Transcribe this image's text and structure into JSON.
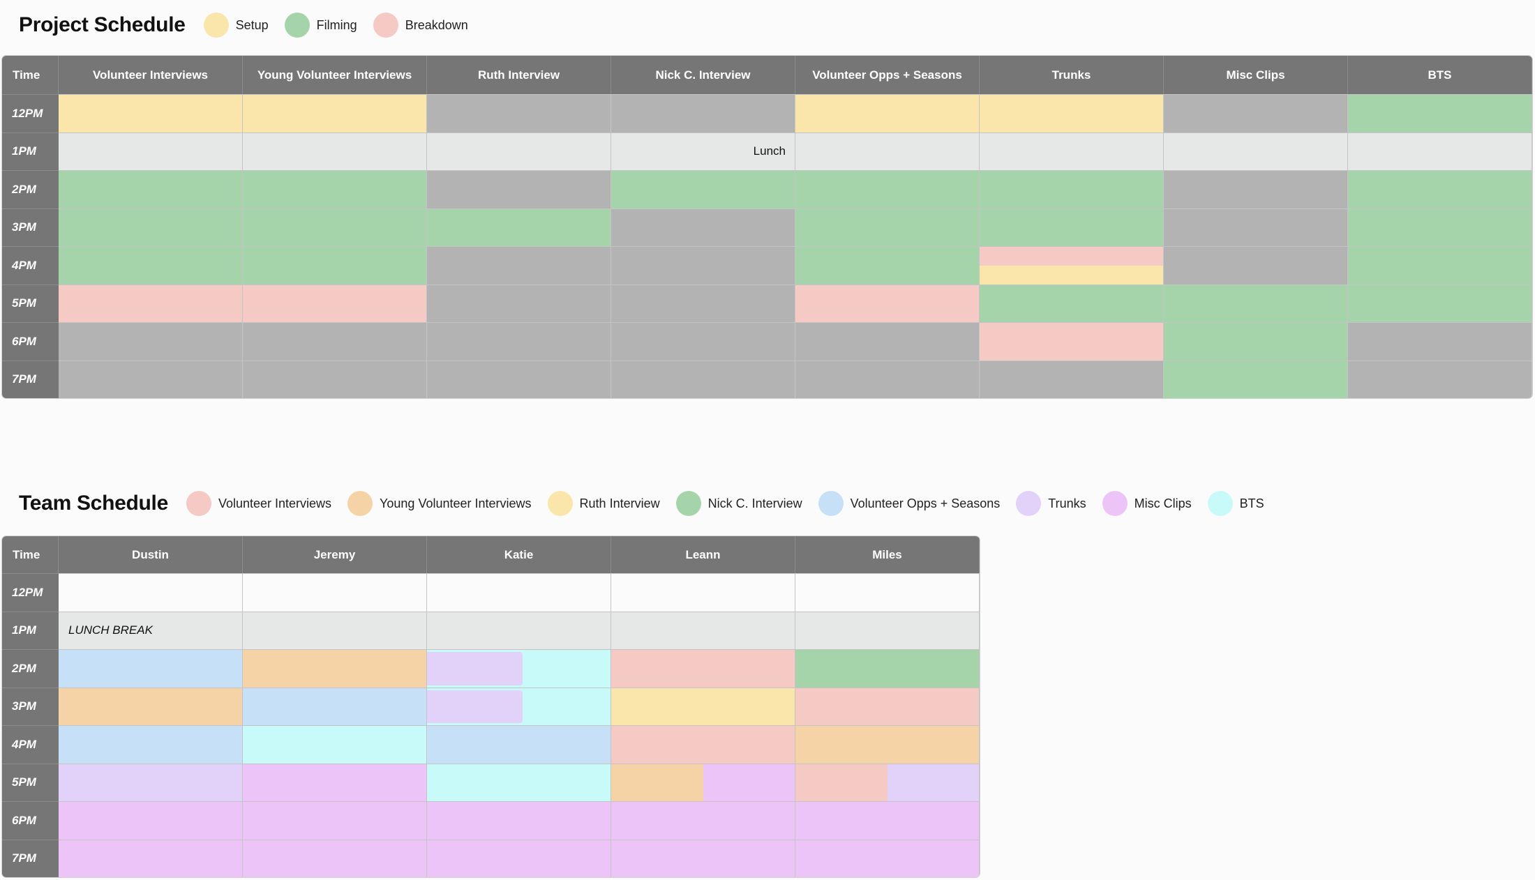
{
  "colors": {
    "setup": "#fae5ab",
    "filming": "#a6d4aa",
    "breakdown": "#f5c9c4",
    "idle": "#b3b3b3",
    "lunch": "#e6e7e7",
    "empty": "#fbfbfb",
    "header": "#767676",
    "volunteer_interviews": "#f5c9c4",
    "young_volunteer_interviews": "#f5d3a6",
    "ruth_interview": "#fae5ab",
    "nick_interview": "#a6d4aa",
    "volunteer_opps": "#c6e0f8",
    "trunks": "#e2d1f8",
    "misc_clips": "#ecc4f8",
    "bts": "#c9fafa"
  },
  "project": {
    "title": "Project Schedule",
    "legend": [
      {
        "label": "Setup",
        "color": "#fae5ab"
      },
      {
        "label": "Filming",
        "color": "#a6d4aa"
      },
      {
        "label": "Breakdown",
        "color": "#f5c9c4"
      }
    ],
    "time_header": "Time",
    "columns": [
      "Volunteer Interviews",
      "Young Volunteer Interviews",
      "Ruth Interview",
      "Nick C. Interview",
      "Volunteer Opps + Seasons",
      "Trunks",
      "Misc Clips",
      "BTS"
    ],
    "times": [
      "12PM",
      "1PM",
      "2PM",
      "3PM",
      "4PM",
      "5PM",
      "6PM",
      "7PM"
    ],
    "lunch_label": "Lunch",
    "rows": [
      [
        [
          "setup"
        ],
        [
          "setup"
        ],
        [
          "idle"
        ],
        [
          "idle"
        ],
        [
          "setup"
        ],
        [
          "setup"
        ],
        [
          "idle"
        ],
        [
          "filming"
        ]
      ],
      [
        [
          "lunch"
        ],
        [
          "lunch"
        ],
        [
          "lunch"
        ],
        [
          "lunch"
        ],
        [
          "lunch"
        ],
        [
          "lunch"
        ],
        [
          "lunch"
        ],
        [
          "lunch"
        ]
      ],
      [
        [
          "filming"
        ],
        [
          "filming"
        ],
        [
          "idle"
        ],
        [
          "filming"
        ],
        [
          "filming"
        ],
        [
          "filming"
        ],
        [
          "idle"
        ],
        [
          "filming"
        ]
      ],
      [
        [
          "filming"
        ],
        [
          "filming"
        ],
        [
          "filming"
        ],
        [
          "idle"
        ],
        [
          "filming"
        ],
        [
          "filming"
        ],
        [
          "idle"
        ],
        [
          "filming"
        ]
      ],
      [
        [
          "filming"
        ],
        [
          "filming"
        ],
        [
          "idle"
        ],
        [
          "idle"
        ],
        [
          "filming"
        ],
        [
          "breakdown",
          "setup"
        ],
        [
          "idle"
        ],
        [
          "filming"
        ]
      ],
      [
        [
          "breakdown"
        ],
        [
          "breakdown"
        ],
        [
          "idle"
        ],
        [
          "idle"
        ],
        [
          "breakdown"
        ],
        [
          "filming"
        ],
        [
          "filming"
        ],
        [
          "filming"
        ]
      ],
      [
        [
          "idle"
        ],
        [
          "idle"
        ],
        [
          "idle"
        ],
        [
          "idle"
        ],
        [
          "idle"
        ],
        [
          "breakdown"
        ],
        [
          "filming"
        ],
        [
          "idle"
        ]
      ],
      [
        [
          "idle"
        ],
        [
          "idle"
        ],
        [
          "idle"
        ],
        [
          "idle"
        ],
        [
          "idle"
        ],
        [
          "idle"
        ],
        [
          "filming"
        ],
        [
          "idle"
        ]
      ]
    ]
  },
  "team": {
    "title": "Team Schedule",
    "legend": [
      {
        "label": "Volunteer Interviews",
        "color": "#f5c9c4"
      },
      {
        "label": "Young Volunteer Interviews",
        "color": "#f5d3a6"
      },
      {
        "label": "Ruth Interview",
        "color": "#fae5ab"
      },
      {
        "label": "Nick C. Interview",
        "color": "#a6d4aa"
      },
      {
        "label": "Volunteer Opps + Seasons",
        "color": "#c6e0f8"
      },
      {
        "label": "Trunks",
        "color": "#e2d1f8"
      },
      {
        "label": "Misc Clips",
        "color": "#ecc4f8"
      },
      {
        "label": "BTS",
        "color": "#c9fafa"
      }
    ],
    "time_header": "Time",
    "columns": [
      "Dustin",
      "Jeremy",
      "Katie",
      "Leann",
      "Miles"
    ],
    "times": [
      "12PM",
      "1PM",
      "2PM",
      "3PM",
      "4PM",
      "5PM",
      "6PM",
      "7PM"
    ],
    "lunch_label": "LUNCH BREAK",
    "rows": [
      [
        [
          "empty"
        ],
        [
          "empty"
        ],
        [
          "empty"
        ],
        [
          "empty"
        ],
        [
          "empty"
        ]
      ],
      [
        [
          "lunch"
        ],
        [
          "lunch"
        ],
        [
          "lunch"
        ],
        [
          "lunch"
        ],
        [
          "lunch"
        ]
      ],
      [
        [
          "volunteer_opps"
        ],
        [
          "young_volunteer_interviews"
        ],
        [
          "trunks",
          "bts"
        ],
        [
          "volunteer_interviews"
        ],
        [
          "nick_interview"
        ]
      ],
      [
        [
          "young_volunteer_interviews"
        ],
        [
          "volunteer_opps"
        ],
        [
          "trunks",
          "bts"
        ],
        [
          "ruth_interview"
        ],
        [
          "volunteer_interviews"
        ]
      ],
      [
        [
          "volunteer_opps"
        ],
        [
          "bts"
        ],
        [
          "volunteer_opps"
        ],
        [
          "volunteer_interviews"
        ],
        [
          "young_volunteer_interviews"
        ]
      ],
      [
        [
          "trunks"
        ],
        [
          "misc_clips"
        ],
        [
          "bts"
        ],
        [
          "young_volunteer_interviews",
          "misc_clips"
        ],
        [
          "volunteer_interviews",
          "trunks"
        ]
      ],
      [
        [
          "misc_clips"
        ],
        [
          "misc_clips"
        ],
        [
          "misc_clips"
        ],
        [
          "misc_clips"
        ],
        [
          "misc_clips"
        ]
      ],
      [
        [
          "misc_clips"
        ],
        [
          "misc_clips"
        ],
        [
          "misc_clips"
        ],
        [
          "misc_clips"
        ],
        [
          "misc_clips"
        ]
      ]
    ]
  }
}
